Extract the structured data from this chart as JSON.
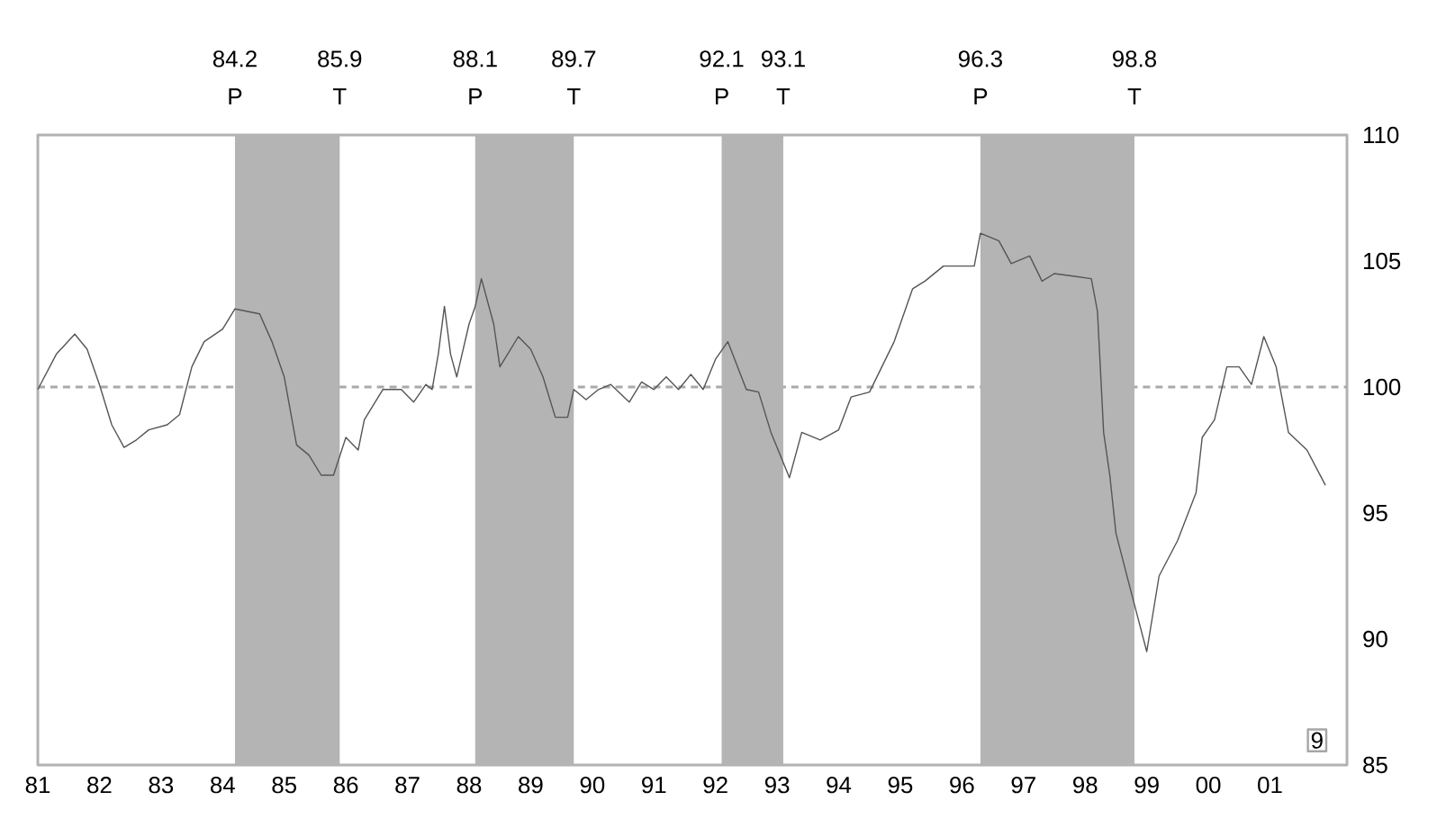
{
  "chart_data": {
    "type": "line",
    "x": [
      1981.0,
      1981.3,
      1981.6,
      1981.8,
      1982.0,
      1982.2,
      1982.4,
      1982.6,
      1982.8,
      1983.1,
      1983.3,
      1983.5,
      1983.7,
      1984.0,
      1984.2,
      1984.4,
      1984.6,
      1984.8,
      1985.0,
      1985.2,
      1985.4,
      1985.6,
      1985.8,
      1986.0,
      1986.2,
      1986.3,
      1986.6,
      1986.9,
      1987.1,
      1987.3,
      1987.4,
      1987.5,
      1987.6,
      1987.7,
      1987.8,
      1988.0,
      1988.1,
      1988.2,
      1988.4,
      1988.5,
      1988.8,
      1989.0,
      1989.2,
      1989.4,
      1989.6,
      1989.7,
      1989.9,
      1990.1,
      1990.3,
      1990.6,
      1990.8,
      1991.0,
      1991.2,
      1991.4,
      1991.6,
      1991.8,
      1992.0,
      1992.2,
      1992.5,
      1992.7,
      1992.9,
      1993.2,
      1993.4,
      1993.7,
      1994.0,
      1994.2,
      1994.5,
      1994.7,
      1994.9,
      1995.2,
      1995.4,
      1995.7,
      1996.2,
      1996.3,
      1996.6,
      1996.8,
      1997.1,
      1997.3,
      1997.5,
      1997.8,
      1998.1,
      1998.2,
      1998.3,
      1998.4,
      1998.5,
      1998.7,
      1999.0,
      1999.2,
      1999.5,
      1999.8,
      1999.9,
      2000.1,
      2000.3,
      2000.5,
      2000.7,
      2000.9,
      2001.1,
      2001.3,
      2001.6,
      2001.9
    ],
    "series": [
      {
        "color": "#555555",
        "values": [
          99.9,
          101.3,
          102.1,
          101.5,
          100.1,
          98.5,
          97.6,
          97.9,
          98.3,
          98.5,
          98.9,
          100.8,
          101.8,
          102.3,
          103.1,
          103.0,
          102.9,
          101.8,
          100.4,
          97.7,
          97.3,
          96.5,
          96.5,
          98.0,
          97.5,
          98.7,
          99.9,
          99.9,
          99.4,
          100.1,
          99.9,
          101.3,
          103.2,
          101.3,
          100.4,
          102.5,
          103.2,
          104.3,
          102.5,
          100.8,
          102.0,
          101.5,
          100.4,
          98.8,
          98.8,
          99.9,
          99.5,
          99.9,
          100.1,
          99.4,
          100.2,
          99.9,
          100.4,
          99.9,
          100.5,
          99.9,
          101.1,
          101.8,
          99.9,
          99.8,
          98.2,
          96.4,
          98.2,
          97.9,
          98.3,
          99.6,
          99.8,
          100.8,
          101.8,
          103.9,
          104.2,
          104.8,
          104.8,
          106.1,
          105.8,
          104.9,
          105.2,
          104.2,
          104.5,
          104.4,
          104.3,
          103.0,
          98.2,
          96.5,
          94.2,
          92.3,
          89.5,
          92.5,
          93.9,
          95.8,
          98.0,
          98.7,
          100.8,
          100.8,
          100.1,
          102.0,
          100.8,
          98.2,
          97.5,
          96.1
        ]
      }
    ],
    "xlim": [
      1981,
      2002.25
    ],
    "xticks": [
      {
        "value": 1981,
        "label": "81"
      },
      {
        "value": 1982,
        "label": "82"
      },
      {
        "value": 1983,
        "label": "83"
      },
      {
        "value": 1984,
        "label": "84"
      },
      {
        "value": 1985,
        "label": "85"
      },
      {
        "value": 1986,
        "label": "86"
      },
      {
        "value": 1987,
        "label": "87"
      },
      {
        "value": 1988,
        "label": "88"
      },
      {
        "value": 1989,
        "label": "89"
      },
      {
        "value": 1990,
        "label": "90"
      },
      {
        "value": 1991,
        "label": "91"
      },
      {
        "value": 1992,
        "label": "92"
      },
      {
        "value": 1993,
        "label": "93"
      },
      {
        "value": 1994,
        "label": "94"
      },
      {
        "value": 1995,
        "label": "95"
      },
      {
        "value": 1996,
        "label": "96"
      },
      {
        "value": 1997,
        "label": "97"
      },
      {
        "value": 1998,
        "label": "98"
      },
      {
        "value": 1999,
        "label": "99"
      },
      {
        "value": 2000,
        "label": "00"
      },
      {
        "value": 2001,
        "label": "01"
      }
    ],
    "ylim": [
      85,
      110
    ],
    "yticks": [
      85,
      90,
      95,
      100,
      105,
      110
    ],
    "ref_lines": [
      {
        "axis": "y",
        "value": 100,
        "color": "#aaaaaa",
        "line_style": "dashed"
      }
    ],
    "bands": [
      {
        "axis": "x",
        "from": 1984.2,
        "to": 1985.9,
        "color": "#b4b4b4"
      },
      {
        "axis": "x",
        "from": 1988.1,
        "to": 1989.7,
        "color": "#b4b4b4"
      },
      {
        "axis": "x",
        "from": 1992.1,
        "to": 1993.1,
        "color": "#b4b4b4"
      },
      {
        "axis": "x",
        "from": 1996.3,
        "to": 1998.8,
        "color": "#b4b4b4"
      }
    ],
    "annotations": [
      "84.2",
      "P",
      "85.9",
      "T",
      "88.1",
      "P",
      "89.7",
      "T",
      "92.1",
      "P",
      "93.1",
      "T",
      "96.3",
      "P",
      "98.8",
      "T",
      "9"
    ]
  }
}
